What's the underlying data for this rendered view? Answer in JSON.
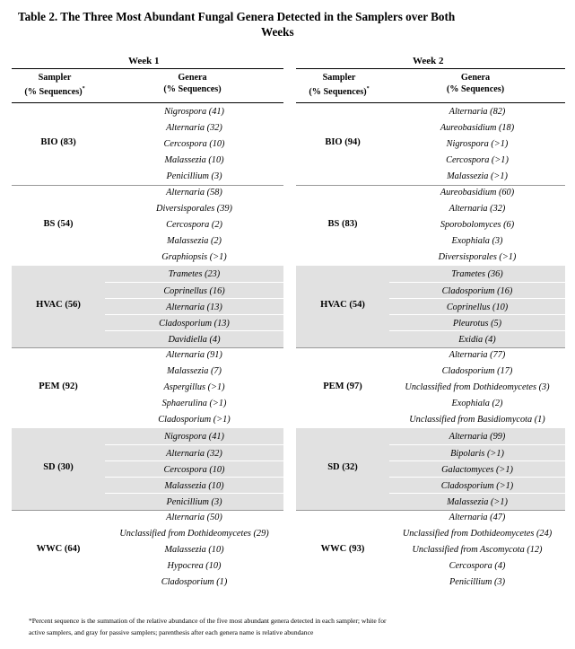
{
  "title": {
    "line1": "Table 2.  The Three Most Abundant Fungal Genera Detected in the Samplers over Both",
    "line2": "Weeks"
  },
  "header": {
    "sampler_line1": "Sampler",
    "sampler_line2": "(% Sequences)",
    "sampler_sup": "*",
    "genera_line1": "Genera",
    "genera_line2": "(% Sequences)"
  },
  "weeks": [
    {
      "label": "Week 1",
      "groups": [
        {
          "sampler": "BIO (83)",
          "shaded": false,
          "genera": [
            "Nigrospora (41)",
            "Alternaria (32)",
            "Cercospora (10)",
            "Malassezia (10)",
            "Penicillium (3)"
          ]
        },
        {
          "sampler": "BS (54)",
          "shaded": false,
          "genera": [
            "Alternaria (58)",
            "Diversisporales (39)",
            "Cercospora (2)",
            "Malassezia (2)",
            "Graphiopsis (>1)"
          ]
        },
        {
          "sampler": "HVAC (56)",
          "shaded": true,
          "genera": [
            "Trametes (23)",
            "Coprinellus (16)",
            "Alternaria (13)",
            "Cladosporium (13)",
            "Davidiella (4)"
          ]
        },
        {
          "sampler": "PEM (92)",
          "shaded": false,
          "genera": [
            "Alternaria (91)",
            "Malassezia (7)",
            "Aspergillus (>1)",
            "Sphaerulina (>1)",
            "Cladosporium (>1)"
          ]
        },
        {
          "sampler": "SD (30)",
          "shaded": true,
          "genera": [
            "Nigrospora (41)",
            "Alternaria (32)",
            "Cercospora (10)",
            "Malassezia (10)",
            "Penicillium (3)"
          ]
        },
        {
          "sampler": "WWC (64)",
          "shaded": false,
          "genera": [
            "Alternaria (50)",
            "Unclassified from Dothideomycetes (29)",
            "Malassezia (10)",
            "Hypocrea (10)",
            "Cladosporium (1)"
          ]
        }
      ]
    },
    {
      "label": "Week 2",
      "groups": [
        {
          "sampler": "BIO (94)",
          "shaded": false,
          "genera": [
            "Alternaria (82)",
            "Aureobasidium (18)",
            "Nigrospora (>1)",
            "Cercospora (>1)",
            "Malassezia (>1)"
          ]
        },
        {
          "sampler": "BS (83)",
          "shaded": false,
          "genera": [
            "Aureobasidium (60)",
            "Alternaria (32)",
            "Sporobolomyces  (6)",
            "Exophiala (3)",
            "Diversisporales (>1)"
          ]
        },
        {
          "sampler": "HVAC (54)",
          "shaded": true,
          "genera": [
            "Trametes (36)",
            "Cladosporium (16)",
            "Coprinellus (10)",
            "Pleurotus (5)",
            "Exidia (4)"
          ]
        },
        {
          "sampler": "PEM (97)",
          "shaded": false,
          "genera": [
            "Alternaria (77)",
            "Cladosporium (17)",
            "Unclassified from Dothideomycetes (3)",
            "Exophiala (2)",
            "Unclassified from Basidiomycota (1)"
          ]
        },
        {
          "sampler": "SD (32)",
          "shaded": true,
          "genera": [
            "Alternaria (99)",
            "Bipolaris (>1)",
            "Galactomyces (>1)",
            "Cladosporium (>1)",
            "Malassezia (>1)"
          ]
        },
        {
          "sampler": "WWC (93)",
          "shaded": false,
          "genera": [
            "Alternaria (47)",
            "Unclassified from Dothideomycetes (24)",
            "Unclassified from Ascomycota (12)",
            "Cercospora (4)",
            "Penicillium (3)"
          ]
        }
      ]
    }
  ],
  "footnote": {
    "line1": "*Percent sequence is the summation of the relative abundance of the five most abundant genera detected in each sampler; white for",
    "line2": "active samplers, and gray for passive samplers; parenthesis after each genera name is relative abundance"
  }
}
